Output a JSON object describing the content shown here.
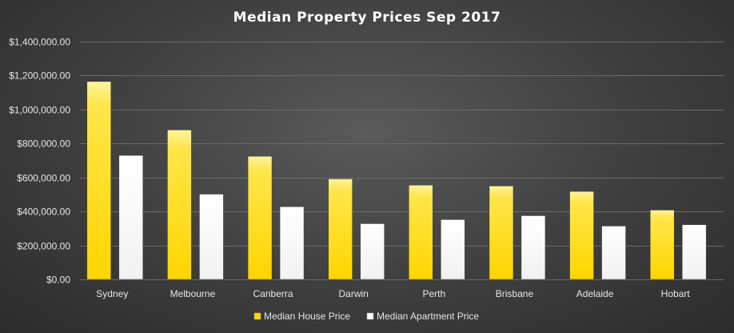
{
  "chart_data": {
    "type": "bar",
    "title": "Median Property Prices Sep 2017",
    "categories": [
      "Sydney",
      "Melbourne",
      "Canberra",
      "Darwin",
      "Perth",
      "Brisbane",
      "Adelaide",
      "Hobart"
    ],
    "series": [
      {
        "name": "Median House Price",
        "color": "#ffd700",
        "values": [
          1165000,
          880000,
          725000,
          592000,
          555000,
          550000,
          518000,
          408000
        ]
      },
      {
        "name": "Median Apartment Price",
        "color": "#ffffff",
        "values": [
          730000,
          502000,
          428000,
          328000,
          352000,
          375000,
          314000,
          322000
        ]
      }
    ],
    "yticks": [
      "$0.00",
      "$200,000.00",
      "$400,000.00",
      "$600,000.00",
      "$800,000.00",
      "$1,000,000.00",
      "$1,200,000.00",
      "$1,400,000.00"
    ],
    "ylim": [
      0,
      1400000
    ],
    "xlabel": "",
    "ylabel": "",
    "grid": true,
    "legend_position": "bottom"
  }
}
